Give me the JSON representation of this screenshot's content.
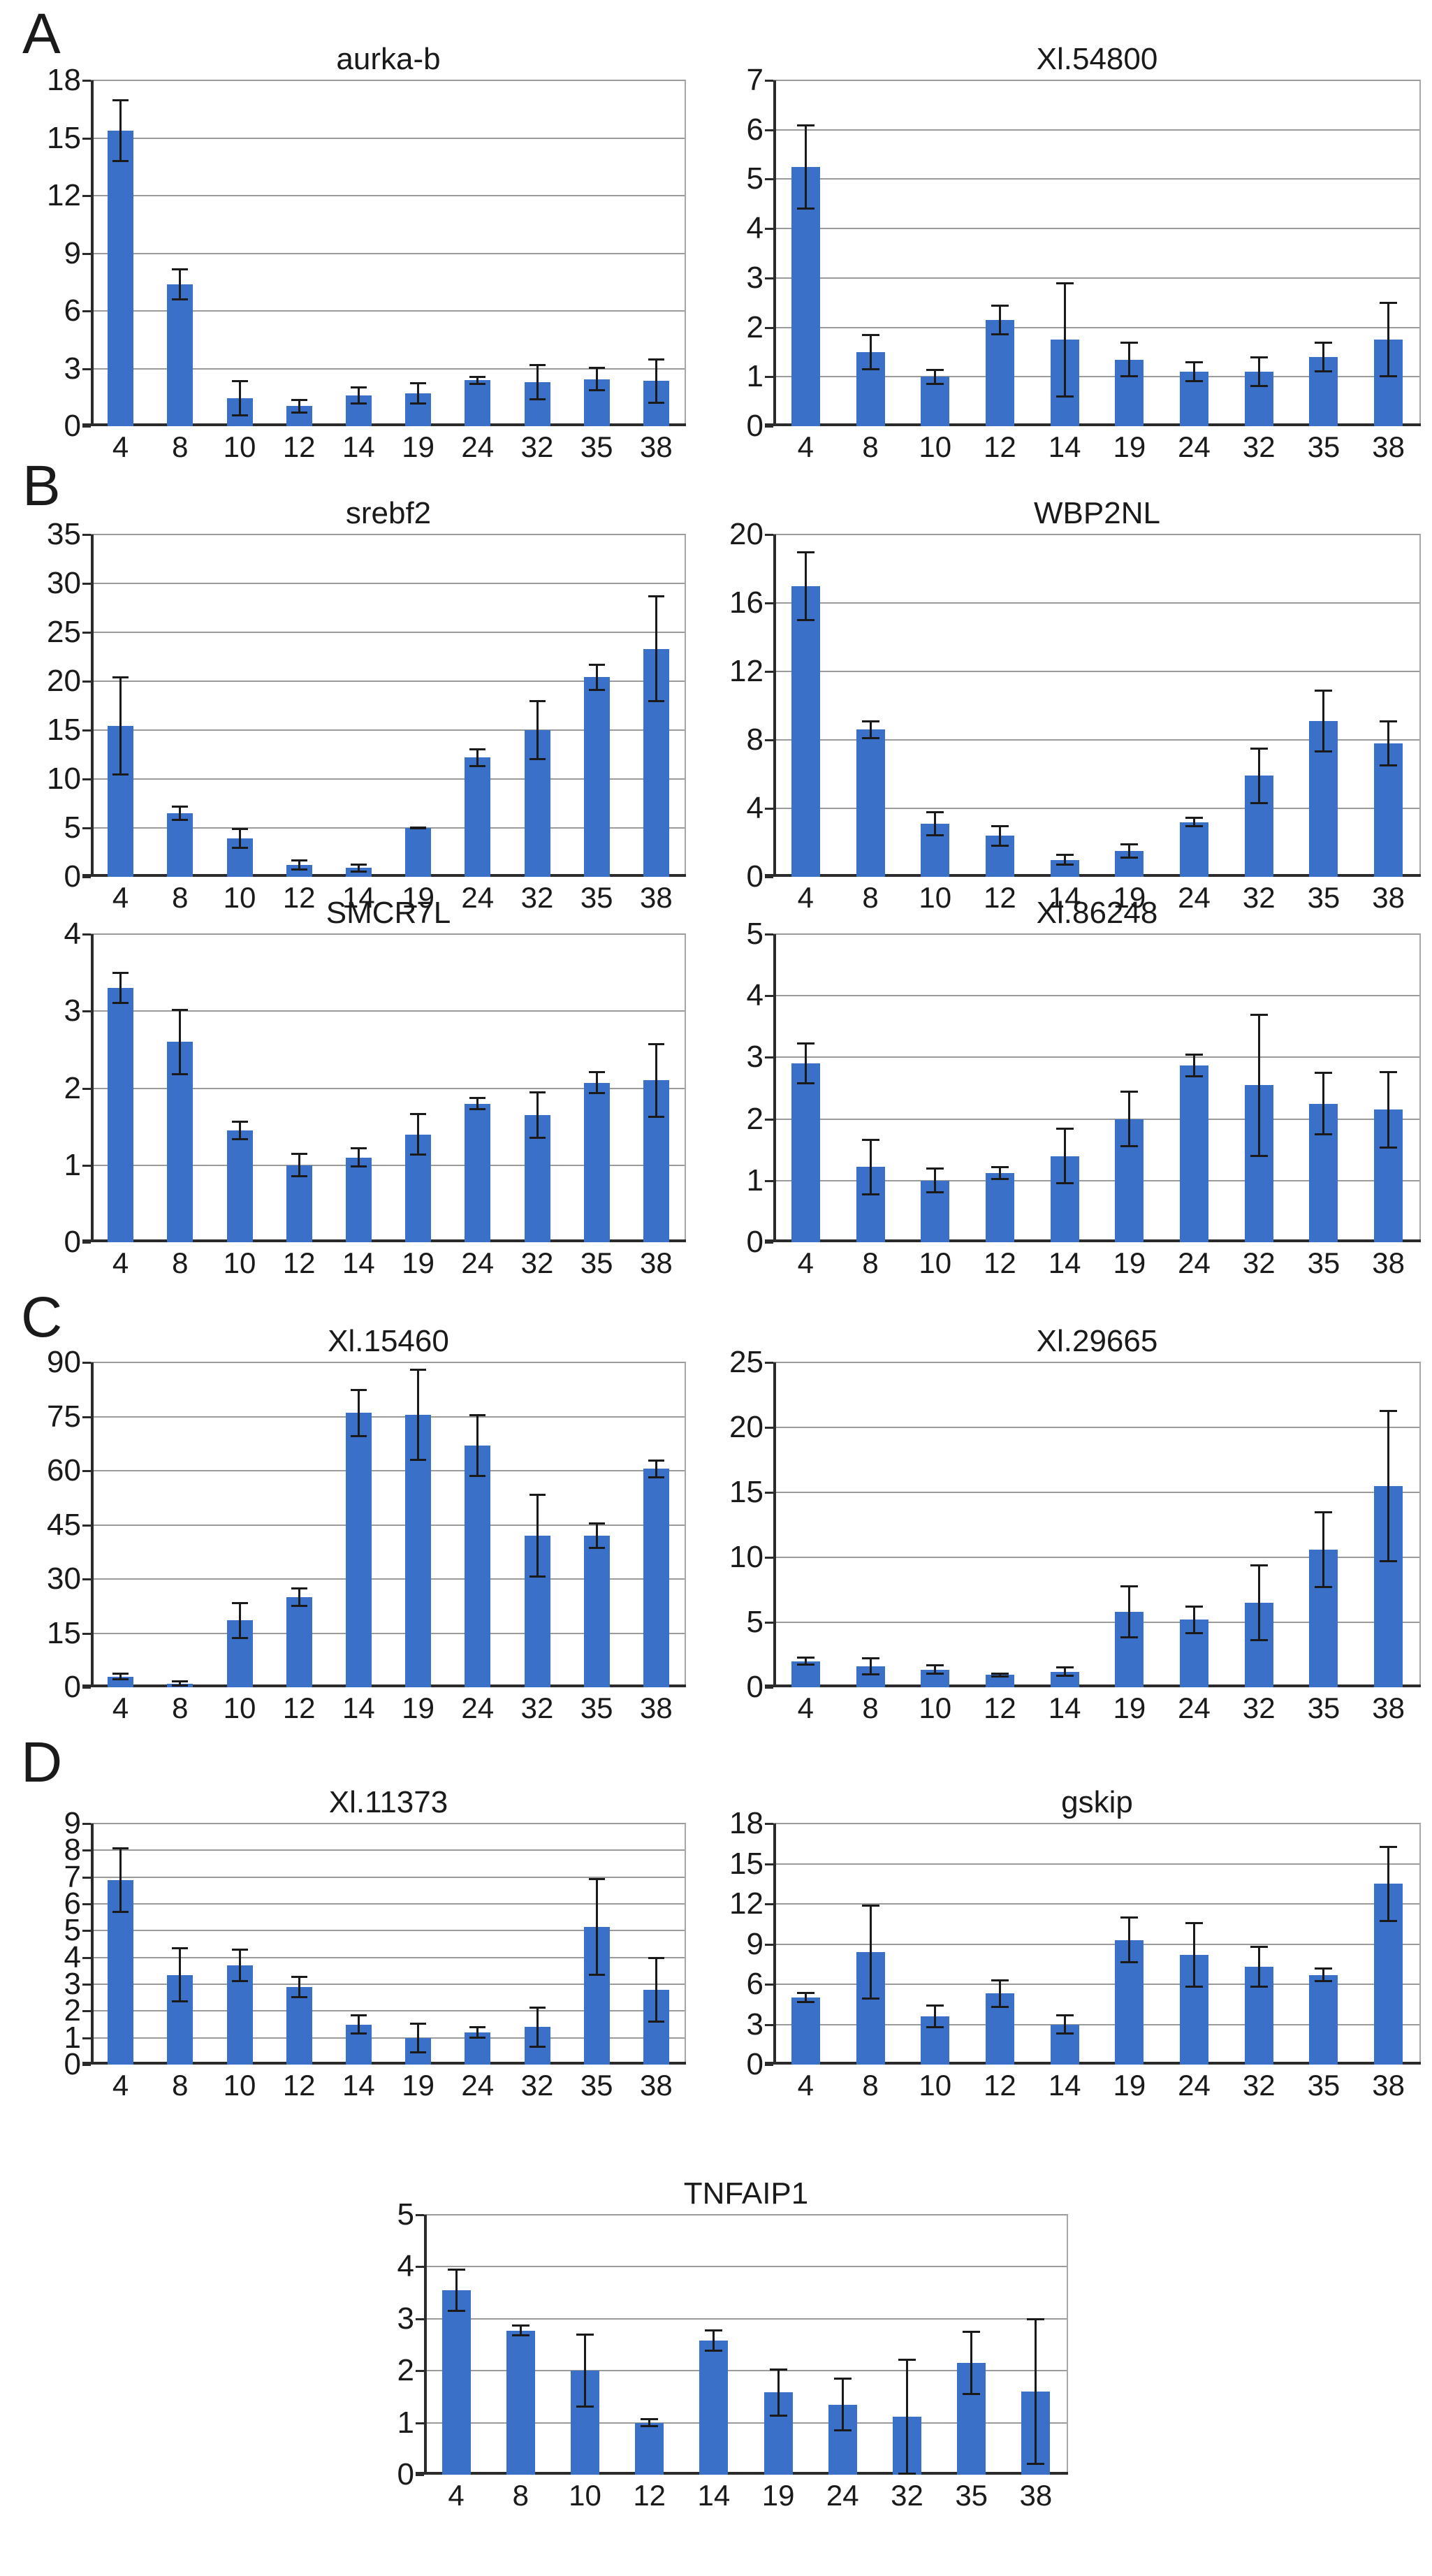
{
  "figure": {
    "panel_letters": [
      "A",
      "B",
      "C",
      "D"
    ],
    "bar_color": "#3b70c8",
    "gridline_color": "#9b9b9b",
    "axis_color": "#2b2b2b",
    "right_border_color": "#a8a8a8",
    "error_bar_color": "#1a1a1a"
  },
  "chart_data": [
    {
      "type": "bar",
      "panel": "A",
      "title": "aurka-b",
      "categories": [
        "4",
        "8",
        "10",
        "12",
        "14",
        "19",
        "24",
        "32",
        "35",
        "38"
      ],
      "values": [
        15.4,
        7.4,
        1.45,
        1.05,
        1.6,
        1.7,
        2.4,
        2.3,
        2.45,
        2.35
      ],
      "errors": [
        1.6,
        0.8,
        0.9,
        0.35,
        0.45,
        0.55,
        0.2,
        0.9,
        0.6,
        1.15
      ],
      "xlabel": "",
      "ylabel": "",
      "ylim": [
        0,
        18
      ],
      "ystep": 3,
      "grid": true,
      "legend": "none"
    },
    {
      "type": "bar",
      "panel": "A",
      "title": "Xl.54800",
      "categories": [
        "4",
        "8",
        "10",
        "12",
        "14",
        "19",
        "24",
        "32",
        "35",
        "38"
      ],
      "values": [
        5.25,
        1.5,
        1.0,
        2.15,
        1.75,
        1.35,
        1.1,
        1.1,
        1.4,
        1.75
      ],
      "errors": [
        0.85,
        0.35,
        0.15,
        0.3,
        1.15,
        0.35,
        0.2,
        0.3,
        0.3,
        0.75
      ],
      "xlabel": "",
      "ylabel": "",
      "ylim": [
        0,
        7
      ],
      "ystep": 1,
      "grid": true,
      "legend": "none"
    },
    {
      "type": "bar",
      "panel": "B",
      "title": "srebf2",
      "categories": [
        "4",
        "8",
        "10",
        "12",
        "14",
        "19",
        "24",
        "32",
        "35",
        "38"
      ],
      "values": [
        15.4,
        6.5,
        3.9,
        1.2,
        0.9,
        5.0,
        12.2,
        15.0,
        20.4,
        23.3
      ],
      "errors": [
        5.0,
        0.7,
        1.0,
        0.5,
        0.4,
        0.1,
        0.9,
        3.0,
        1.3,
        5.4
      ],
      "xlabel": "",
      "ylabel": "",
      "ylim": [
        0,
        35
      ],
      "ystep": 5,
      "grid": true,
      "legend": "none"
    },
    {
      "type": "bar",
      "panel": "B",
      "title": "WBP2NL",
      "categories": [
        "4",
        "8",
        "10",
        "12",
        "14",
        "19",
        "24",
        "32",
        "35",
        "38"
      ],
      "values": [
        17.0,
        8.6,
        3.1,
        2.4,
        1.0,
        1.5,
        3.2,
        5.9,
        9.1,
        7.8
      ],
      "errors": [
        2.0,
        0.5,
        0.7,
        0.6,
        0.3,
        0.4,
        0.25,
        1.6,
        1.8,
        1.3
      ],
      "xlabel": "",
      "ylabel": "",
      "ylim": [
        0,
        20
      ],
      "ystep": 4,
      "grid": true,
      "legend": "none"
    },
    {
      "type": "bar",
      "panel": "B",
      "title": "SMCR7L",
      "categories": [
        "4",
        "8",
        "10",
        "12",
        "14",
        "19",
        "24",
        "32",
        "35",
        "38"
      ],
      "values": [
        3.3,
        2.6,
        1.45,
        1.0,
        1.1,
        1.4,
        1.8,
        1.65,
        2.07,
        2.1
      ],
      "errors": [
        0.2,
        0.42,
        0.12,
        0.15,
        0.12,
        0.27,
        0.08,
        0.3,
        0.14,
        0.48
      ],
      "xlabel": "",
      "ylabel": "",
      "ylim": [
        0,
        4
      ],
      "ystep": 1,
      "grid": true,
      "legend": "none"
    },
    {
      "type": "bar",
      "panel": "B",
      "title": "Xl.86248",
      "categories": [
        "4",
        "8",
        "10",
        "12",
        "14",
        "19",
        "24",
        "32",
        "35",
        "38"
      ],
      "values": [
        2.9,
        1.22,
        1.0,
        1.12,
        1.4,
        2.0,
        2.87,
        2.55,
        2.25,
        2.15
      ],
      "errors": [
        0.33,
        0.45,
        0.2,
        0.1,
        0.45,
        0.45,
        0.18,
        1.15,
        0.5,
        0.62
      ],
      "xlabel": "",
      "ylabel": "",
      "ylim": [
        0,
        5
      ],
      "ystep": 1,
      "grid": true,
      "legend": "none"
    },
    {
      "type": "bar",
      "panel": "C",
      "title": "Xl.15460",
      "categories": [
        "4",
        "8",
        "10",
        "12",
        "14",
        "19",
        "24",
        "32",
        "35",
        "38"
      ],
      "values": [
        3,
        1,
        18.5,
        25,
        76,
        75.5,
        67,
        42,
        42,
        60.5
      ],
      "errors": [
        0.8,
        0.7,
        5,
        2.5,
        6.5,
        12.5,
        8.5,
        11.5,
        3.5,
        2.5
      ],
      "xlabel": "",
      "ylabel": "",
      "ylim": [
        0,
        90
      ],
      "ystep": 15,
      "grid": true,
      "legend": "none"
    },
    {
      "type": "bar",
      "panel": "C",
      "title": "Xl.29665",
      "categories": [
        "4",
        "8",
        "10",
        "12",
        "14",
        "19",
        "24",
        "32",
        "35",
        "38"
      ],
      "values": [
        2.0,
        1.6,
        1.35,
        0.95,
        1.2,
        5.8,
        5.2,
        6.5,
        10.6,
        15.5
      ],
      "errors": [
        0.3,
        0.65,
        0.35,
        0.15,
        0.35,
        2.0,
        1.05,
        2.9,
        2.9,
        5.8
      ],
      "xlabel": "",
      "ylabel": "",
      "ylim": [
        0,
        25
      ],
      "ystep": 5,
      "grid": true,
      "legend": "none"
    },
    {
      "type": "bar",
      "panel": "D",
      "title": "Xl.11373",
      "categories": [
        "4",
        "8",
        "10",
        "12",
        "14",
        "19",
        "24",
        "32",
        "35",
        "38"
      ],
      "values": [
        6.9,
        3.35,
        3.7,
        2.9,
        1.5,
        1.0,
        1.2,
        1.4,
        5.15,
        2.8
      ],
      "errors": [
        1.2,
        1.0,
        0.6,
        0.4,
        0.35,
        0.55,
        0.2,
        0.75,
        1.8,
        1.2
      ],
      "xlabel": "",
      "ylabel": "",
      "ylim": [
        0,
        9
      ],
      "ystep": 1,
      "grid": true,
      "legend": "none"
    },
    {
      "type": "bar",
      "panel": "D",
      "title": "gskip",
      "categories": [
        "4",
        "8",
        "10",
        "12",
        "14",
        "19",
        "24",
        "32",
        "35",
        "38"
      ],
      "values": [
        5.0,
        8.4,
        3.6,
        5.3,
        3.0,
        9.3,
        8.2,
        7.3,
        6.7,
        13.5
      ],
      "errors": [
        0.35,
        3.5,
        0.85,
        1.0,
        0.7,
        1.7,
        2.4,
        1.5,
        0.5,
        2.8
      ],
      "xlabel": "",
      "ylabel": "",
      "ylim": [
        0,
        18
      ],
      "ystep": 3,
      "grid": true,
      "legend": "none"
    },
    {
      "type": "bar",
      "panel": "D",
      "title": "TNFAIP1",
      "categories": [
        "4",
        "8",
        "10",
        "12",
        "14",
        "19",
        "24",
        "32",
        "35",
        "38"
      ],
      "values": [
        3.55,
        2.77,
        2.0,
        1.0,
        2.58,
        1.58,
        1.35,
        1.12,
        2.15,
        1.6
      ],
      "errors": [
        0.4,
        0.1,
        0.7,
        0.07,
        0.2,
        0.45,
        0.5,
        1.1,
        0.6,
        1.4
      ],
      "xlabel": "",
      "ylabel": "",
      "ylim": [
        0,
        5
      ],
      "ystep": 1,
      "grid": true,
      "legend": "none"
    }
  ]
}
